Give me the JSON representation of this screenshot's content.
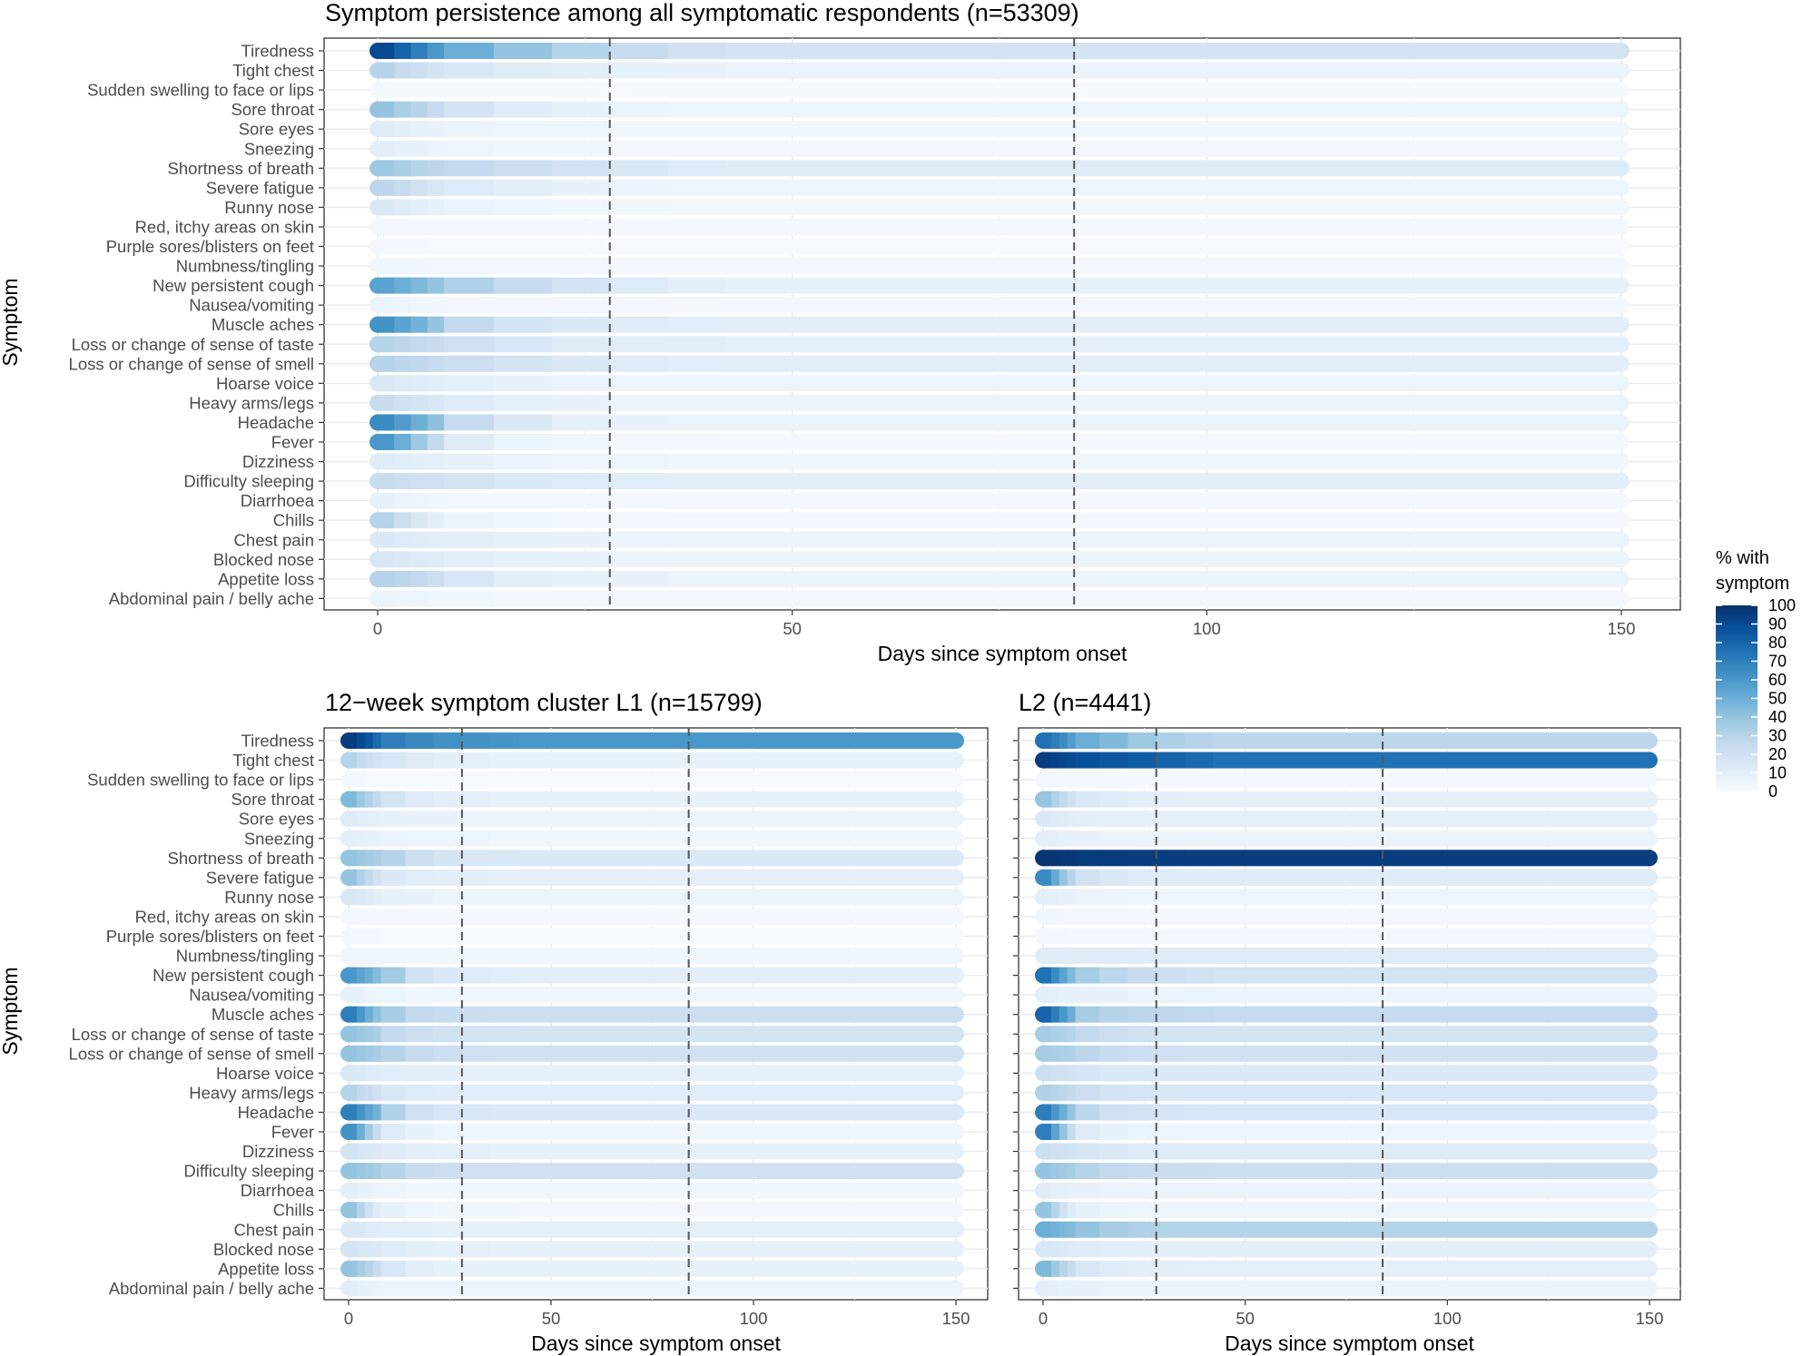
{
  "symptoms": [
    "Tiredness",
    "Tight chest",
    "Sudden swelling to face or lips",
    "Sore throat",
    "Sore eyes",
    "Sneezing",
    "Shortness of breath",
    "Severe fatigue",
    "Runny nose",
    "Red, itchy areas on skin",
    "Purple sores/blisters on feet",
    "Numbness/tingling",
    "New persistent cough",
    "Nausea/vomiting",
    "Muscle aches",
    "Loss or change of sense of taste",
    "Loss or change of sense of smell",
    "Hoarse voice",
    "Heavy arms/legs",
    "Headache",
    "Fever",
    "Dizziness",
    "Difficulty sleeping",
    "Diarrhoea",
    "Chills",
    "Chest pain",
    "Blocked nose",
    "Appetite loss",
    "Abdominal pain / belly ache"
  ],
  "legend": {
    "title_line1": "% with",
    "title_line2": "symptom",
    "ticks": [
      100,
      90,
      80,
      70,
      60,
      50,
      40,
      30,
      20,
      10,
      0
    ],
    "colors": [
      "#f7fbff",
      "#deebf7",
      "#c6dbef",
      "#9ecae1",
      "#6baed6",
      "#4292c6",
      "#2171b5",
      "#08519c",
      "#08306b"
    ]
  },
  "chart_data": [
    {
      "type": "heatmap",
      "title": "Symptom persistence among all symptomatic respondents (n=53309)",
      "xlabel": "Days since symptom onset",
      "ylabel": "Symptom",
      "xticks": [
        0,
        50,
        100,
        150
      ],
      "xlim": [
        0,
        150
      ],
      "vlines": [
        28,
        84
      ],
      "breaks": [
        0,
        2,
        4,
        6,
        8,
        14,
        21,
        28,
        35,
        42,
        150
      ],
      "values": {
        "Tiredness": [
          90,
          80,
          70,
          60,
          50,
          40,
          30,
          24,
          20,
          18
        ],
        "Tight chest": [
          30,
          25,
          22,
          18,
          15,
          12,
          10,
          8,
          7,
          6
        ],
        "Sudden swelling to face or lips": [
          2,
          1,
          1,
          1,
          1,
          1,
          1,
          1,
          1,
          1
        ],
        "Sore throat": [
          40,
          34,
          30,
          25,
          18,
          12,
          8,
          6,
          5,
          5
        ],
        "Sore eyes": [
          12,
          10,
          8,
          7,
          6,
          5,
          5,
          4,
          4,
          4
        ],
        "Sneezing": [
          10,
          8,
          7,
          6,
          5,
          4,
          4,
          3,
          3,
          3
        ],
        "Shortness of breath": [
          38,
          34,
          30,
          28,
          26,
          22,
          18,
          15,
          13,
          12
        ],
        "Severe fatigue": [
          28,
          24,
          20,
          16,
          13,
          10,
          7,
          6,
          5,
          5
        ],
        "Runny nose": [
          14,
          12,
          10,
          8,
          6,
          5,
          4,
          4,
          3,
          3
        ],
        "Red, itchy areas on skin": [
          3,
          3,
          2,
          2,
          2,
          2,
          2,
          2,
          2,
          2
        ],
        "Purple sores/blisters on feet": [
          2,
          2,
          2,
          1,
          1,
          1,
          1,
          1,
          1,
          1
        ],
        "Numbness/tingling": [
          4,
          4,
          4,
          3,
          3,
          3,
          3,
          3,
          3,
          3
        ],
        "New persistent cough": [
          55,
          50,
          45,
          40,
          32,
          25,
          18,
          13,
          10,
          8
        ],
        "Nausea/vomiting": [
          6,
          5,
          4,
          4,
          3,
          3,
          3,
          2,
          2,
          2
        ],
        "Muscle aches": [
          62,
          55,
          48,
          40,
          26,
          18,
          14,
          12,
          11,
          10
        ],
        "Loss or change of sense of taste": [
          30,
          28,
          26,
          24,
          20,
          16,
          12,
          11,
          10,
          9
        ],
        "Loss or change of sense of smell": [
          30,
          28,
          27,
          25,
          22,
          18,
          14,
          12,
          11,
          10
        ],
        "Hoarse voice": [
          15,
          13,
          12,
          11,
          9,
          7,
          6,
          5,
          5,
          5
        ],
        "Heavy arms/legs": [
          24,
          20,
          18,
          16,
          12,
          9,
          7,
          6,
          6,
          6
        ],
        "Headache": [
          65,
          58,
          50,
          42,
          25,
          14,
          9,
          7,
          6,
          6
        ],
        "Fever": [
          60,
          50,
          38,
          26,
          12,
          6,
          4,
          3,
          3,
          2
        ],
        "Dizziness": [
          12,
          11,
          10,
          9,
          8,
          6,
          5,
          5,
          4,
          4
        ],
        "Difficulty sleeping": [
          24,
          22,
          21,
          20,
          18,
          15,
          13,
          11,
          10,
          10
        ],
        "Diarrhoea": [
          8,
          6,
          5,
          4,
          3,
          3,
          2,
          2,
          2,
          2
        ],
        "Chills": [
          30,
          22,
          15,
          10,
          6,
          4,
          3,
          3,
          2,
          2
        ],
        "Chest pain": [
          14,
          13,
          12,
          11,
          10,
          8,
          7,
          6,
          6,
          6
        ],
        "Blocked nose": [
          16,
          14,
          13,
          12,
          10,
          8,
          7,
          6,
          6,
          6
        ],
        "Appetite loss": [
          30,
          28,
          26,
          22,
          16,
          10,
          8,
          7,
          6,
          6
        ],
        "Abdominal pain / belly ache": [
          6,
          5,
          5,
          4,
          4,
          3,
          3,
          3,
          3,
          3
        ]
      }
    },
    {
      "type": "heatmap",
      "title": "12−week symptom cluster L1 (n=15799)",
      "xlabel": "Days since symptom onset",
      "ylabel": "Symptom",
      "xticks": [
        0,
        50,
        100,
        150
      ],
      "xlim": [
        0,
        150
      ],
      "vlines": [
        28,
        84
      ],
      "breaks": [
        0,
        2,
        4,
        6,
        8,
        14,
        21,
        28,
        35,
        42,
        150
      ],
      "values": {
        "Tiredness": [
          95,
          90,
          85,
          78,
          70,
          66,
          63,
          62,
          61,
          60
        ],
        "Tight chest": [
          30,
          25,
          22,
          19,
          16,
          12,
          10,
          9,
          8,
          8
        ],
        "Sudden swelling to face or lips": [
          2,
          2,
          1,
          1,
          1,
          1,
          1,
          1,
          1,
          1
        ],
        "Sore throat": [
          45,
          38,
          32,
          26,
          18,
          12,
          10,
          9,
          8,
          8
        ],
        "Sore eyes": [
          12,
          11,
          10,
          9,
          8,
          7,
          7,
          6,
          6,
          6
        ],
        "Sneezing": [
          10,
          9,
          8,
          7,
          6,
          5,
          5,
          5,
          4,
          4
        ],
        "Shortness of breath": [
          40,
          38,
          36,
          34,
          30,
          22,
          18,
          16,
          15,
          14
        ],
        "Severe fatigue": [
          40,
          32,
          26,
          20,
          14,
          11,
          10,
          10,
          9,
          9
        ],
        "Runny nose": [
          16,
          14,
          12,
          10,
          8,
          7,
          6,
          6,
          6,
          6
        ],
        "Red, itchy areas on skin": [
          3,
          3,
          2,
          2,
          2,
          2,
          2,
          2,
          2,
          2
        ],
        "Purple sores/blisters on feet": [
          2,
          2,
          2,
          2,
          1,
          1,
          1,
          1,
          1,
          1
        ],
        "Numbness/tingling": [
          4,
          4,
          4,
          4,
          4,
          4,
          4,
          4,
          4,
          4
        ],
        "New persistent cough": [
          60,
          55,
          50,
          44,
          36,
          20,
          14,
          12,
          11,
          10
        ],
        "Nausea/vomiting": [
          8,
          7,
          6,
          5,
          5,
          4,
          4,
          4,
          4,
          4
        ],
        "Muscle aches": [
          70,
          60,
          50,
          42,
          35,
          26,
          24,
          23,
          22,
          22
        ],
        "Loss or change of sense of taste": [
          40,
          38,
          36,
          34,
          26,
          22,
          20,
          19,
          19,
          18
        ],
        "Loss or change of sense of smell": [
          40,
          38,
          37,
          35,
          30,
          25,
          22,
          21,
          20,
          20
        ],
        "Hoarse voice": [
          15,
          14,
          13,
          12,
          11,
          10,
          10,
          9,
          9,
          9
        ],
        "Heavy arms/legs": [
          30,
          26,
          24,
          20,
          16,
          13,
          12,
          11,
          11,
          11
        ],
        "Headache": [
          70,
          62,
          55,
          48,
          32,
          20,
          16,
          15,
          14,
          14
        ],
        "Fever": [
          62,
          50,
          36,
          24,
          12,
          7,
          5,
          4,
          4,
          4
        ],
        "Dizziness": [
          18,
          16,
          15,
          14,
          12,
          10,
          9,
          9,
          8,
          8
        ],
        "Difficulty sleeping": [
          40,
          38,
          37,
          35,
          30,
          24,
          22,
          21,
          21,
          20
        ],
        "Diarrhoea": [
          10,
          8,
          7,
          6,
          5,
          4,
          4,
          4,
          4,
          4
        ],
        "Chills": [
          40,
          30,
          20,
          12,
          8,
          5,
          4,
          4,
          4,
          3
        ],
        "Chest pain": [
          15,
          14,
          13,
          12,
          11,
          10,
          9,
          9,
          9,
          9
        ],
        "Blocked nose": [
          18,
          16,
          15,
          14,
          12,
          10,
          9,
          9,
          8,
          8
        ],
        "Appetite loss": [
          40,
          35,
          30,
          24,
          16,
          10,
          8,
          7,
          7,
          7
        ],
        "Abdominal pain / belly ache": [
          10,
          8,
          7,
          6,
          5,
          5,
          5,
          5,
          5,
          5
        ]
      }
    },
    {
      "type": "heatmap",
      "title": "L2 (n=4441)",
      "xlabel": "Days since symptom onset",
      "ylabel": "Symptom",
      "xticks": [
        0,
        50,
        100,
        150
      ],
      "xlim": [
        0,
        150
      ],
      "vlines": [
        28,
        84
      ],
      "breaks": [
        0,
        2,
        4,
        6,
        8,
        14,
        21,
        28,
        35,
        42,
        150
      ],
      "values": {
        "Tiredness": [
          75,
          70,
          65,
          58,
          50,
          45,
          38,
          33,
          30,
          28
        ],
        "Tight chest": [
          95,
          93,
          92,
          90,
          88,
          85,
          83,
          80,
          78,
          75
        ],
        "Sudden swelling to face or lips": [
          3,
          3,
          2,
          2,
          2,
          2,
          2,
          2,
          2,
          2
        ],
        "Sore throat": [
          40,
          32,
          26,
          20,
          15,
          12,
          10,
          10,
          9,
          9
        ],
        "Sore eyes": [
          14,
          13,
          12,
          11,
          10,
          9,
          9,
          9,
          9,
          9
        ],
        "Sneezing": [
          10,
          9,
          8,
          8,
          7,
          6,
          6,
          6,
          6,
          6
        ],
        "Shortness of breath": [
          98,
          98,
          97,
          97,
          96,
          96,
          95,
          95,
          95,
          95
        ],
        "Severe fatigue": [
          65,
          52,
          40,
          30,
          20,
          15,
          13,
          12,
          12,
          12
        ],
        "Runny nose": [
          10,
          9,
          8,
          7,
          6,
          6,
          5,
          5,
          5,
          5
        ],
        "Red, itchy areas on skin": [
          4,
          4,
          3,
          3,
          3,
          3,
          3,
          3,
          3,
          3
        ],
        "Purple sores/blisters on feet": [
          3,
          3,
          3,
          2,
          2,
          2,
          2,
          2,
          2,
          2
        ],
        "Numbness/tingling": [
          12,
          12,
          12,
          12,
          12,
          12,
          12,
          12,
          12,
          12
        ],
        "New persistent cough": [
          75,
          65,
          55,
          45,
          35,
          28,
          24,
          22,
          20,
          18
        ],
        "Nausea/vomiting": [
          10,
          9,
          8,
          8,
          7,
          7,
          6,
          6,
          6,
          6
        ],
        "Muscle aches": [
          80,
          70,
          60,
          50,
          35,
          30,
          28,
          27,
          26,
          25
        ],
        "Loss or change of sense of taste": [
          35,
          33,
          32,
          30,
          26,
          22,
          20,
          19,
          19,
          18
        ],
        "Loss or change of sense of smell": [
          35,
          34,
          33,
          32,
          28,
          24,
          22,
          21,
          20,
          20
        ],
        "Hoarse voice": [
          22,
          21,
          20,
          19,
          17,
          15,
          15,
          14,
          14,
          14
        ],
        "Heavy arms/legs": [
          32,
          30,
          28,
          26,
          22,
          18,
          17,
          16,
          16,
          16
        ],
        "Headache": [
          70,
          60,
          50,
          40,
          28,
          20,
          18,
          17,
          16,
          16
        ],
        "Fever": [
          70,
          55,
          40,
          25,
          12,
          8,
          6,
          5,
          5,
          5
        ],
        "Dizziness": [
          22,
          21,
          20,
          19,
          17,
          14,
          13,
          13,
          12,
          12
        ],
        "Difficulty sleeping": [
          40,
          38,
          37,
          35,
          30,
          26,
          24,
          23,
          23,
          22
        ],
        "Diarrhoea": [
          12,
          10,
          9,
          8,
          7,
          6,
          6,
          6,
          6,
          6
        ],
        "Chills": [
          40,
          30,
          20,
          12,
          8,
          6,
          5,
          5,
          5,
          5
        ],
        "Chest pain": [
          50,
          48,
          46,
          44,
          40,
          35,
          32,
          31,
          30,
          30
        ],
        "Blocked nose": [
          16,
          15,
          14,
          13,
          12,
          11,
          10,
          10,
          10,
          10
        ],
        "Appetite loss": [
          45,
          38,
          30,
          24,
          16,
          12,
          10,
          10,
          9,
          9
        ],
        "Abdominal pain / belly ache": [
          10,
          9,
          8,
          8,
          7,
          6,
          6,
          6,
          6,
          6
        ]
      }
    }
  ]
}
